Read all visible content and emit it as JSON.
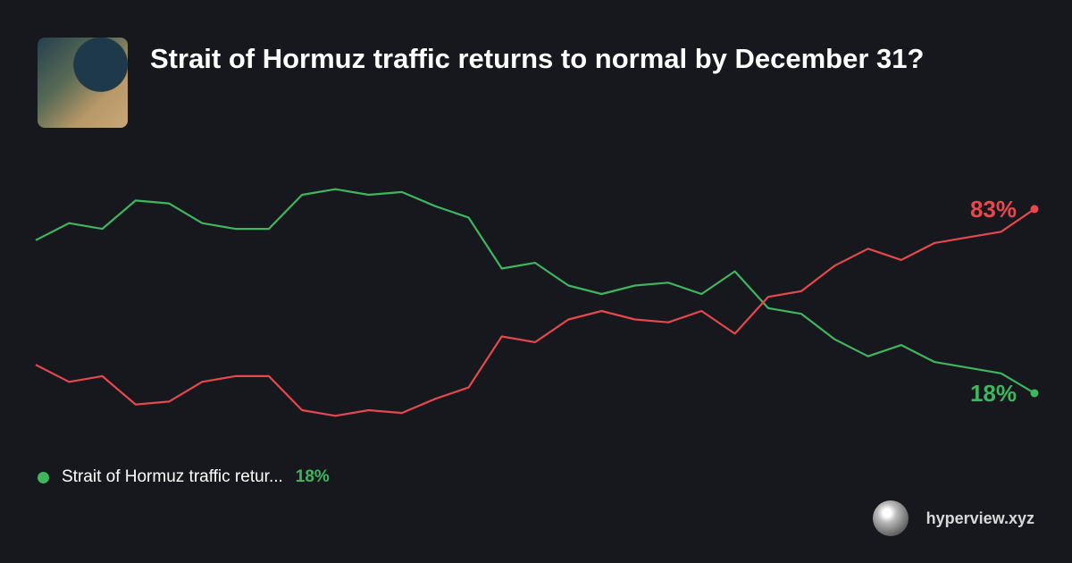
{
  "chart_data": {
    "type": "line",
    "title": "Strait of Hormuz traffic returns to normal by December 31?",
    "ylim": [
      0,
      100
    ],
    "series": [
      {
        "name": "Strait of Hormuz traffic retur...",
        "color": "#3fb55f",
        "end_label": "18%",
        "values": [
          72,
          78,
          76,
          86,
          85,
          78,
          76,
          76,
          88,
          90,
          88,
          89,
          84,
          80,
          62,
          64,
          56,
          53,
          56,
          57,
          53,
          61,
          48,
          46,
          37,
          31,
          35,
          29,
          27,
          25,
          18
        ]
      },
      {
        "color": "#e5484d",
        "end_label": "83%",
        "values": [
          28,
          22,
          24,
          14,
          15,
          22,
          24,
          24,
          12,
          10,
          12,
          11,
          16,
          20,
          38,
          36,
          44,
          47,
          44,
          43,
          47,
          39,
          52,
          54,
          63,
          69,
          65,
          71,
          73,
          75,
          83
        ]
      }
    ]
  },
  "footer": {
    "brand": "hyperview.xyz"
  }
}
